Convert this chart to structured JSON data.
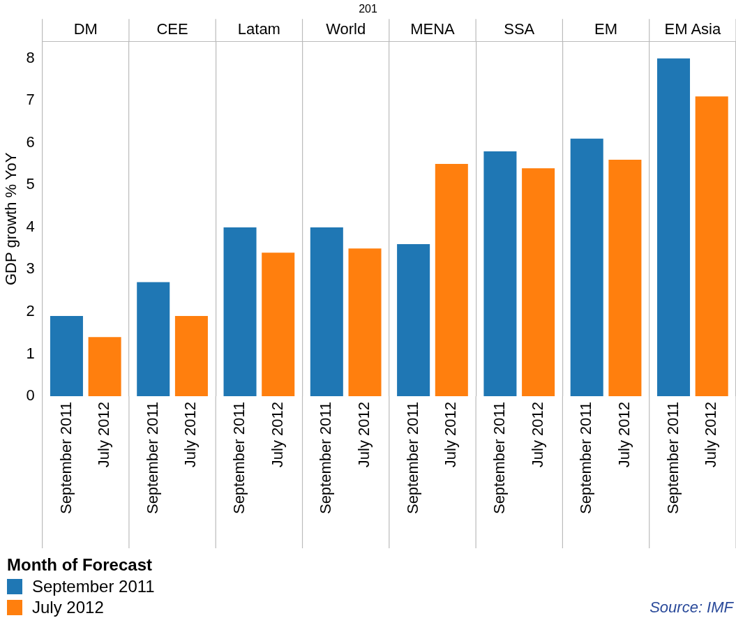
{
  "chart_data": {
    "type": "bar",
    "title": "201",
    "categories": [
      "DM",
      "CEE",
      "Latam",
      "World",
      "MENA",
      "SSA",
      "EM",
      "EM Asia"
    ],
    "series": [
      {
        "name": "September 2011",
        "color": "#1f77b4",
        "values": [
          1.9,
          2.7,
          4.0,
          4.0,
          3.6,
          5.8,
          6.1,
          8.0
        ]
      },
      {
        "name": "July 2012",
        "color": "#ff7f0e",
        "values": [
          1.4,
          1.9,
          3.4,
          3.5,
          5.5,
          5.4,
          5.6,
          7.1
        ]
      }
    ],
    "ylabel": "GDP growth % YoY",
    "ylim": [
      0,
      8.4
    ],
    "yticks": [
      0,
      1,
      2,
      3,
      4,
      5,
      6,
      7,
      8
    ],
    "grid": "x",
    "legend": "bottom left",
    "legend_title": "Month of Forecast",
    "annotations": [
      "Source: IMF"
    ]
  }
}
